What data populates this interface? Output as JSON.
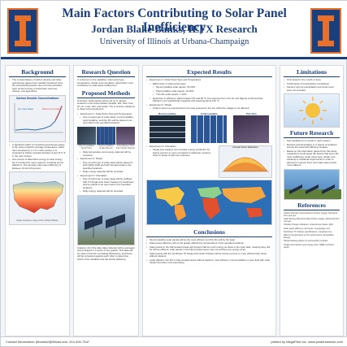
{
  "header": {
    "title": "Main Factors Contributing to Solar Panel Inefficiency",
    "subtitle": "Jordan Blake Banks, IEFX Research",
    "university": "University of Illinois at Urbana-Champaign",
    "logo_glyph": "I",
    "brand_colors": {
      "navy": "#1b3f7a",
      "orange": "#e8702a"
    }
  },
  "background": {
    "heading": "Background",
    "bullets": [
      "The concentrations of carbon dioxide and other greenhouse gases have steadily increased since the Industrial Revolution due to human activities such as the burning of fossil fuels, land use change, and agriculture.",
      "A significant effect of increased greenhouse gases is the rising of Earth's average temperature, which has increased by 1.4 °F in this century. It is projected to further increase between 2 and 11.5 °F in the next century.",
      "One source of alternative energy is solar energy, but it is limited by many reasons, including its low efficiency. The average solar panel efficiency is between 10 and 20 percent."
    ],
    "figure1_title": "Carbon Dioxide Concentrations",
    "figure1_labels": [
      "Ice Core Data",
      "Mauna Loa Data"
    ],
    "figure2_caption": "Solar resource map of the United States"
  },
  "research_question": {
    "heading": "Research Question",
    "text": "In reference to the variables: solar panel type, temperature, shade, and orientation: what factor most contributes to solar panel inefficiency?"
  },
  "methods": {
    "heading": "Proposed Methods",
    "overview": "Overview: Solar panels will be set up in various locations in the United States (Seattle, WA, New York, NY, St. Louis, MO, and Austin, TX) to test the variations in these sub-experiments.",
    "exp1_title": "Experiment 1: Solar Panel Type and Temperature",
    "exp1_bullets": [
      "Five of each type of solar panel: monocrystalline, polycrystalline, and thin film will be placed in an open field in the specified locations.",
      "Daily temperature and energy captured will be recorded."
    ],
    "panel_labels": [
      "Monocrystalline Roof Tiles",
      "Polycrystalline Solar Panels",
      "Amorphous Thin Film Solar Panels"
    ],
    "exp2_title": "Experiment 2: Shade",
    "exp2_bullets": [
      "Five of each type of solar panel will be placed in both lightly (half) and fully wooded areas in the specified locations.",
      "Daily energy captured will be recorded."
    ],
    "exp3_title": "Experiment 3: Orientation",
    "exp3_bullets": [
      "Five of each type of solar panel will be outfitted with TO Single-Axis Solar Trackers by SunPower and be placed in an open field in the specified locations.",
      "Daily energy captured will be recorded."
    ],
    "analysis": "Analysis: All of the daily data collected will be averaged and portrayed in a series of line graphs. This data will be used to find the correlating efficiencies, and those will be compared against each other to determine which of the variables has the lowest efficiency."
  },
  "expected_results": {
    "heading": "Expected Results",
    "exp1_title": "Experiment 1: Solar Panel Type and Temperature",
    "exp1_bullets": [
      "Efficiencies of solar panel types",
      "Monocrystalline solar panels: 15-20%",
      "Polycrystalline solar panels: 13-16%",
      "Thin film solar panels: 7-10%",
      "Reduction in efficiency starts between 87 and 95 °F, but experiments in the UK and Nigeria confirmed that efficiency isn't significantly impacted until reaching about 120 °F."
    ],
    "exp2_title": "Experiment 2: Shade",
    "exp2_bullets": [
      "Output current is proportional to the area exposed to the sun while the voltage is not affected."
    ],
    "panel_labels": [
      "Monocrystalline",
      "Polycrystalline",
      "Thin Film"
    ],
    "exp3_title": "Experiment 3: Orientation",
    "exp3_bullets": [
      "Single-axis trackers can increase energy production by twenty percent or more compared to stationary systems when in areas of high sun exposure."
    ],
    "chart_title": "Annual Solar Radiation"
  },
  "conclusions": {
    "heading": "Conclusions",
    "bullets": [
      "Monocrystalline solar panels will be the most efficient and thin film will be the least.",
      "Solar panel efficiency will not be greatly affected by temperatures of the specified locations.",
      "Solar panels in the half wooded areas will produce half as much energy as those in the open field, meaning they will be half as efficient; solar panels in the fully wooded areas may not produce any energy at all.",
      "Solar panels with the SunPower T0 Single-Axis Solar Trackers will be twenty percent or more efficient than those without trackers.",
      "Least efficient: thin film in fully wooded areas without trackers; most efficient: monocrystalline in open field with solar tracker (but also most expensive)."
    ]
  },
  "limitations": {
    "heading": "Limitations",
    "bullets": [
      "Only tested in the month of June.",
      "Small range of temperatures considered.",
      "Factors such as precipitation and cloud cover were not included."
    ]
  },
  "future": {
    "heading": "Future Research",
    "bullets": [
      "Test variables for a month in each season.",
      "Expand experimentation to a variety of locations around the world with differing climates.",
      "Based on the information gained from this study, researchers could target the factors that led to the most inefficiency (solar panel type, shade, and trackers) in individual experiments in order to attempt to improve them and make solar panels more efficient."
    ]
  },
  "references": {
    "heading": "References",
    "items": [
      "Carbon Dioxide Concentrations (Online image). Retrieved from epa.gov.",
      "Solar Energy Resource Map (Online image). Retrieved from nrel.gov.",
      "Climate Change Indicators: Greenhouse Gases. EPA.",
      "Solar panel efficiency and types. energysage.com.",
      "SunPower T0 Tracker specifications. sunpower.com.",
      "Effect of temperature on PV performance. Renewable Energy.",
      "Partial shading effects on photovoltaic modules.",
      "Single-axis trackers and energy yield. NREL technical report."
    ]
  },
  "footer": {
    "contact": "Contact Information: jbbanks2@illinois.edu; 314-494-7547",
    "printed_by": "printed by MegaPrint Inc. www.postersession.com"
  }
}
